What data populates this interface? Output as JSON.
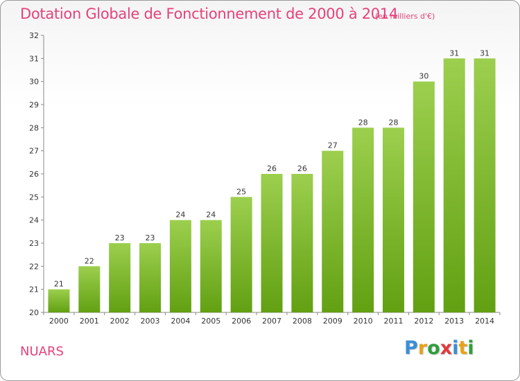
{
  "page": {
    "commune": "NUARS",
    "logo": {
      "text": "Proxiti",
      "letter_colors": [
        "#3a8fd6",
        "#e8a21c",
        "#2f9e3d",
        "#e03a3a",
        "#3a8fd6",
        "#e8a21c",
        "#2f9e3d"
      ]
    }
  },
  "chart_data": {
    "type": "bar",
    "title": "Dotation Globale de Fonctionnement de 2000 à 2014",
    "unit_label": "(en milliers d'€)",
    "xlabel": "",
    "ylabel": "",
    "categories": [
      "2000",
      "2001",
      "2002",
      "2003",
      "2004",
      "2005",
      "2006",
      "2007",
      "2008",
      "2009",
      "2010",
      "2011",
      "2012",
      "2013",
      "2014"
    ],
    "values": [
      21,
      22,
      23,
      23,
      24,
      24,
      25,
      26,
      26,
      27,
      28,
      28,
      30,
      31,
      31
    ],
    "data_labels": [
      "21",
      "22",
      "23",
      "23",
      "24",
      "24",
      "25",
      "26",
      "26",
      "27",
      "28",
      "28",
      "30",
      "31",
      "31"
    ],
    "ylim": [
      20,
      32
    ],
    "yticks": [
      20,
      21,
      22,
      23,
      24,
      25,
      26,
      27,
      28,
      29,
      30,
      31,
      32
    ],
    "grid": false,
    "legend": "none",
    "colors": {
      "bar_top": "#9ccf4e",
      "bar_bottom": "#62a012",
      "title": "#e6417a",
      "axis": "#888888"
    }
  }
}
